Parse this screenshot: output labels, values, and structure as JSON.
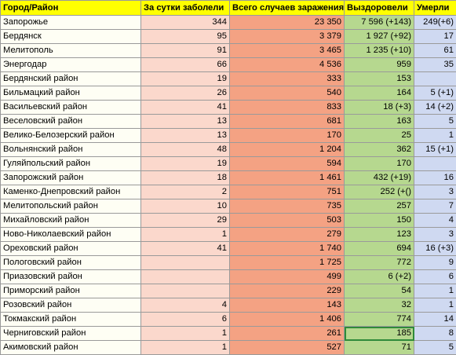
{
  "headers": {
    "city": "Город/Район",
    "daily": "За сутки заболели",
    "total": "Всего случаев заражения",
    "recovered": "Выздоровели",
    "died": "Умерли"
  },
  "rows": [
    {
      "name": "Запорожье",
      "daily": "344",
      "total": "23 350",
      "recovered": "7 596 (+143)",
      "died": "249(+6)"
    },
    {
      "name": "Бердянск",
      "daily": "95",
      "total": "3 379",
      "recovered": "1 927 (+92)",
      "died": "17"
    },
    {
      "name": "Мелитополь",
      "daily": "91",
      "total": "3 465",
      "recovered": "1 235 (+10)",
      "died": "61"
    },
    {
      "name": "Энергодар",
      "daily": "66",
      "total": "4 536",
      "recovered": "959",
      "died": "35"
    },
    {
      "name": "Бердянский район",
      "daily": "19",
      "total": "333",
      "recovered": "153",
      "died": ""
    },
    {
      "name": "Бильмацкий район",
      "daily": "26",
      "total": "540",
      "recovered": "164",
      "died": "5 (+1)"
    },
    {
      "name": "Васильевский район",
      "daily": "41",
      "total": "833",
      "recovered": "18 (+3)",
      "died": "14 (+2)"
    },
    {
      "name": "Веселовский район",
      "daily": "13",
      "total": "681",
      "recovered": "163",
      "died": "5"
    },
    {
      "name": "Велико-Белозерский район",
      "daily": "13",
      "total": "170",
      "recovered": "25",
      "died": "1"
    },
    {
      "name": "Вольнянский район",
      "daily": "48",
      "total": "1 204",
      "recovered": "362",
      "died": "15 (+1)"
    },
    {
      "name": "Гуляйпольский район",
      "daily": "19",
      "total": "594",
      "recovered": "170",
      "died": ""
    },
    {
      "name": "Запорожский район",
      "daily": "18",
      "total": "1 461",
      "recovered": "432 (+19)",
      "died": "16"
    },
    {
      "name": "Каменко-Днепровский район",
      "daily": "2",
      "total": "751",
      "recovered": "252 (+()",
      "died": "3"
    },
    {
      "name": "Мелитопольский район",
      "daily": "10",
      "total": "735",
      "recovered": "257",
      "died": "7"
    },
    {
      "name": "Михайловский район",
      "daily": "29",
      "total": "503",
      "recovered": "150",
      "died": "4"
    },
    {
      "name": "Ново-Николаевский район",
      "daily": "1",
      "total": "279",
      "recovered": "123",
      "died": "3"
    },
    {
      "name": "Ореховский район",
      "daily": "41",
      "total": "1 740",
      "recovered": "694",
      "died": "16 (+3)"
    },
    {
      "name": "Пологовский район",
      "daily": "",
      "total": "1 725",
      "recovered": "772",
      "died": "9"
    },
    {
      "name": "Приазовский район",
      "daily": "",
      "total": "499",
      "recovered": "6 (+2)",
      "died": "6"
    },
    {
      "name": "Приморский район",
      "daily": "",
      "total": "229",
      "recovered": "54",
      "died": "1"
    },
    {
      "name": "Розовский район",
      "daily": "4",
      "total": "143",
      "recovered": "32",
      "died": "1"
    },
    {
      "name": "Токмакский район",
      "daily": "6",
      "total": "1 406",
      "recovered": "774",
      "died": "14"
    },
    {
      "name": "Черниговский район",
      "daily": "1",
      "total": "261",
      "recovered": "185",
      "died": "8"
    },
    {
      "name": "Акимовский район",
      "daily": "1",
      "total": "527",
      "recovered": "71",
      "died": "5"
    }
  ],
  "selected_cell": {
    "row": 22,
    "column": "recovered"
  }
}
